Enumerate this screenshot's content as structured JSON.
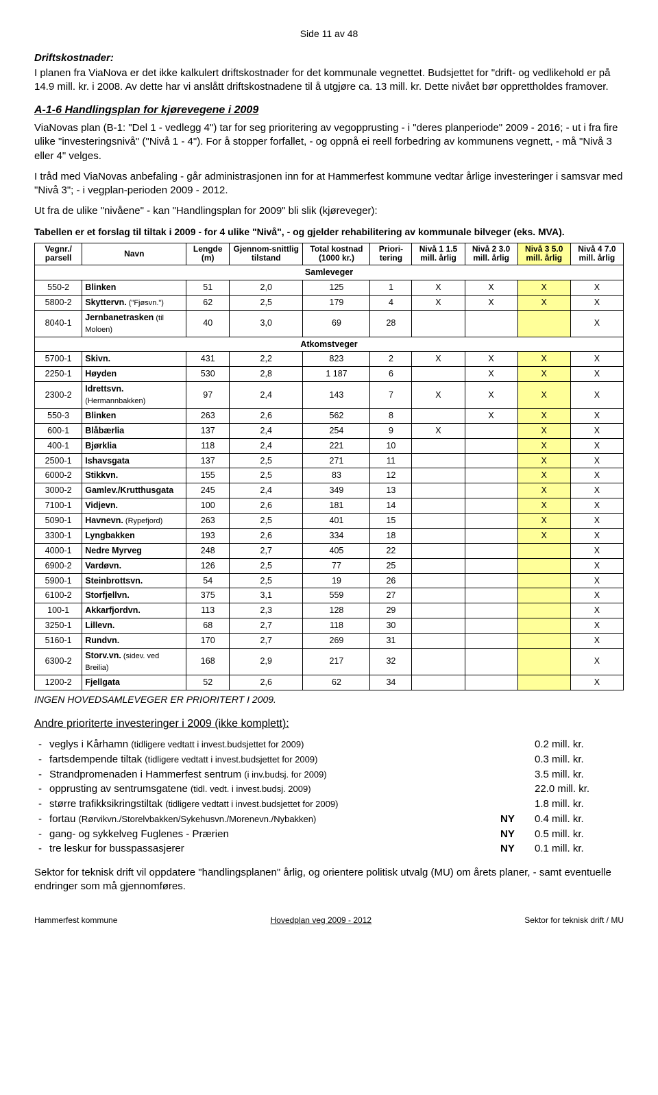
{
  "page_header": "Side 11 av 48",
  "section1_title": "Driftskostnader:",
  "section1_text": "I planen fra ViaNova er det ikke kalkulert driftskostnader for det kommunale vegnettet. Budsjettet for \"drift- og vedlikehold er på 14.9 mill. kr. i 2008. Av dette har vi anslått driftskostnadene til å utgjøre ca. 13 mill. kr. Dette nivået bør opprettholdes framover.",
  "section2_title": "A-1-6 Handlingsplan for kjørevegene i 2009",
  "section2_p1": "ViaNovas plan (B-1: \"Del 1 - vedlegg 4\") tar for seg prioritering av vegopprusting - i \"deres planperiode\" 2009 - 2016; - ut i fra fire ulike \"investeringsnivå\" (\"Nivå 1 - 4\"). For å stopper forfallet, - og oppnå ei reell forbedring av kommunens vegnett, - må \"Nivå 3 eller 4\" velges.",
  "section2_p2": "I tråd med ViaNovas anbefaling - går administrasjonen inn for at Hammerfest kommune vedtar årlige investeringer i samsvar med \"Nivå 3\"; - i vegplan-perioden 2009 - 2012.",
  "section2_p3": "Ut fra de ulike \"nivåene\" - kan \"Handlingsplan for 2009\" bli slik (kjøreveger):",
  "table_intro": "Tabellen er et forslag til tiltak i 2009 - for 4 ulike \"Nivå\", - og gjelder rehabilitering av kommunale bilveger (eks. MVA).",
  "columns": {
    "c0": "Vegnr./ parsell",
    "c1": "Navn",
    "c2": "Lengde (m)",
    "c3": "Gjennom-snittlig tilstand",
    "c4": "Total kostnad (1000 kr.)",
    "c5": "Priori-tering",
    "c6": "Nivå 1 1.5 mill. årlig",
    "c7": "Nivå 2 3.0 mill. årlig",
    "c8": "Nivå 3 5.0 mill. årlig",
    "c9": "Nivå 4 7.0 mill. årlig"
  },
  "group1": "Samleveger",
  "group2": "Atkomstveger",
  "rows": [
    {
      "g": 1,
      "id": "550-2",
      "name": "Blinken",
      "len": "51",
      "cond": "2,0",
      "cost": "125",
      "pri": "1",
      "n1": "X",
      "n2": "X",
      "n3": "X",
      "n4": "X"
    },
    {
      "g": 1,
      "id": "5800-2",
      "name": "Skyttervn.",
      "sub": " (\"Fjøsvn.\")",
      "len": "62",
      "cond": "2,5",
      "cost": "179",
      "pri": "4",
      "n1": "X",
      "n2": "X",
      "n3": "X",
      "n4": "X"
    },
    {
      "g": 1,
      "id": "8040-1",
      "name": "Jernbanetrasken",
      "sub": " (til Moloen)",
      "len": "40",
      "cond": "3,0",
      "cost": "69",
      "pri": "28",
      "n1": "",
      "n2": "",
      "n3": "",
      "n4": "X"
    },
    {
      "g": 2,
      "id": "5700-1",
      "name": "Skivn.",
      "len": "431",
      "cond": "2,2",
      "cost": "823",
      "pri": "2",
      "n1": "X",
      "n2": "X",
      "n3": "X",
      "n4": "X"
    },
    {
      "g": 2,
      "id": "2250-1",
      "name": "Høyden",
      "len": "530",
      "cond": "2,8",
      "cost": "1 187",
      "pri": "6",
      "n1": "",
      "n2": "X",
      "n3": "X",
      "n4": "X"
    },
    {
      "g": 2,
      "id": "2300-2",
      "name": "Idrettsvn.",
      "sub": " (Hermannbakken)",
      "len": "97",
      "cond": "2,4",
      "cost": "143",
      "pri": "7",
      "n1": "X",
      "n2": "X",
      "n3": "X",
      "n4": "X"
    },
    {
      "g": 2,
      "id": "550-3",
      "name": "Blinken",
      "len": "263",
      "cond": "2,6",
      "cost": "562",
      "pri": "8",
      "n1": "",
      "n2": "X",
      "n3": "X",
      "n4": "X"
    },
    {
      "g": 2,
      "id": "600-1",
      "name": "Blåbærlia",
      "len": "137",
      "cond": "2,4",
      "cost": "254",
      "pri": "9",
      "n1": "X",
      "n2": "",
      "n3": "X",
      "n4": "X"
    },
    {
      "g": 2,
      "id": "400-1",
      "name": "Bjørklia",
      "len": "118",
      "cond": "2,4",
      "cost": "221",
      "pri": "10",
      "n1": "",
      "n2": "",
      "n3": "X",
      "n4": "X"
    },
    {
      "g": 2,
      "id": "2500-1",
      "name": "Ishavsgata",
      "len": "137",
      "cond": "2,5",
      "cost": "271",
      "pri": "11",
      "n1": "",
      "n2": "",
      "n3": "X",
      "n4": "X"
    },
    {
      "g": 2,
      "id": "6000-2",
      "name": "Stikkvn.",
      "len": "155",
      "cond": "2,5",
      "cost": "83",
      "pri": "12",
      "n1": "",
      "n2": "",
      "n3": "X",
      "n4": "X"
    },
    {
      "g": 2,
      "id": "3000-2",
      "name": "Gamlev./Krutthusgata",
      "len": "245",
      "cond": "2,4",
      "cost": "349",
      "pri": "13",
      "n1": "",
      "n2": "",
      "n3": "X",
      "n4": "X"
    },
    {
      "g": 2,
      "id": "7100-1",
      "name": "Vidjevn.",
      "len": "100",
      "cond": "2,6",
      "cost": "181",
      "pri": "14",
      "n1": "",
      "n2": "",
      "n3": "X",
      "n4": "X"
    },
    {
      "g": 2,
      "id": "5090-1",
      "name": "Havnevn.",
      "sub": " (Rypefjord)",
      "len": "263",
      "cond": "2,5",
      "cost": "401",
      "pri": "15",
      "n1": "",
      "n2": "",
      "n3": "X",
      "n4": "X"
    },
    {
      "g": 2,
      "id": "3300-1",
      "name": "Lyngbakken",
      "len": "193",
      "cond": "2,6",
      "cost": "334",
      "pri": "18",
      "n1": "",
      "n2": "",
      "n3": "X",
      "n4": "X"
    },
    {
      "g": 2,
      "id": "4000-1",
      "name": "Nedre Myrveg",
      "len": "248",
      "cond": "2,7",
      "cost": "405",
      "pri": "22",
      "n1": "",
      "n2": "",
      "n3": "",
      "n4": "X"
    },
    {
      "g": 2,
      "id": "6900-2",
      "name": "Vardøvn.",
      "len": "126",
      "cond": "2,5",
      "cost": "77",
      "pri": "25",
      "n1": "",
      "n2": "",
      "n3": "",
      "n4": "X"
    },
    {
      "g": 2,
      "id": "5900-1",
      "name": "Steinbrottsvn.",
      "len": "54",
      "cond": "2,5",
      "cost": "19",
      "pri": "26",
      "n1": "",
      "n2": "",
      "n3": "",
      "n4": "X"
    },
    {
      "g": 2,
      "id": "6100-2",
      "name": "Storfjellvn.",
      "len": "375",
      "cond": "3,1",
      "cost": "559",
      "pri": "27",
      "n1": "",
      "n2": "",
      "n3": "",
      "n4": "X"
    },
    {
      "g": 2,
      "id": "100-1",
      "name": "Akkarfjordvn.",
      "len": "113",
      "cond": "2,3",
      "cost": "128",
      "pri": "29",
      "n1": "",
      "n2": "",
      "n3": "",
      "n4": "X"
    },
    {
      "g": 2,
      "id": "3250-1",
      "name": "Lillevn.",
      "len": "68",
      "cond": "2,7",
      "cost": "118",
      "pri": "30",
      "n1": "",
      "n2": "",
      "n3": "",
      "n4": "X"
    },
    {
      "g": 2,
      "id": "5160-1",
      "name": "Rundvn.",
      "len": "170",
      "cond": "2,7",
      "cost": "269",
      "pri": "31",
      "n1": "",
      "n2": "",
      "n3": "",
      "n4": "X"
    },
    {
      "g": 2,
      "id": "6300-2",
      "name": "Storv.vn.",
      "sub": " (sidev. ved Breilia)",
      "len": "168",
      "cond": "2,9",
      "cost": "217",
      "pri": "32",
      "n1": "",
      "n2": "",
      "n3": "",
      "n4": "X"
    },
    {
      "g": 2,
      "id": "1200-2",
      "name": "Fjellgata",
      "len": "52",
      "cond": "2,6",
      "cost": "62",
      "pri": "34",
      "n1": "",
      "n2": "",
      "n3": "",
      "n4": "X"
    }
  ],
  "table_note": "INGEN HOVEDSAMLEVEGER ER PRIORITERT I 2009.",
  "inv_heading": "Andre prioriterte investeringer i 2009 (ikke komplett):",
  "inv_items": [
    {
      "label": "veglys i Kårhamn",
      "sub": "(tidligere vedtatt i invest.budsjettet for 2009)",
      "ny": "",
      "amt": "0.2 mill. kr."
    },
    {
      "label": "fartsdempende tiltak",
      "sub": "(tidligere vedtatt i invest.budsjettet for 2009)",
      "ny": "",
      "amt": "0.3 mill. kr."
    },
    {
      "label": "Strandpromenaden i Hammerfest sentrum",
      "sub": "(i inv.budsj. for 2009)",
      "ny": "",
      "amt": "3.5 mill. kr."
    },
    {
      "label": "opprusting av sentrumsgatene",
      "sub": "(tidl. vedt. i invest.budsj. 2009)",
      "ny": "",
      "amt": "22.0 mill. kr."
    },
    {
      "label": "større trafikksikringstiltak",
      "sub": "(tidligere vedtatt i invest.budsjettet for 2009)",
      "ny": "",
      "amt": "1.8 mill. kr."
    },
    {
      "label": "fortau",
      "sub": "(Rørvikvn./Storelvbakken/Sykehusvn./Morenevn./Nybakken)",
      "ny": "NY",
      "amt": "0.4 mill. kr."
    },
    {
      "label": "gang- og sykkelveg Fuglenes - Prærien",
      "sub": "",
      "ny": "NY",
      "amt": "0.5 mill. kr."
    },
    {
      "label": "tre leskur for busspassasjerer",
      "sub": "",
      "ny": "NY",
      "amt": "0.1 mill. kr."
    }
  ],
  "closing": "Sektor for teknisk drift vil oppdatere \"handlingsplanen\" årlig, og orientere politisk utvalg (MU) om årets planer, - samt eventuelle endringer som må gjennomføres.",
  "footer": {
    "left": "Hammerfest kommune",
    "mid": "Hovedplan veg 2009 - 2012",
    "right": "Sektor for teknisk drift / MU"
  },
  "highlight_color": "#ffff99"
}
